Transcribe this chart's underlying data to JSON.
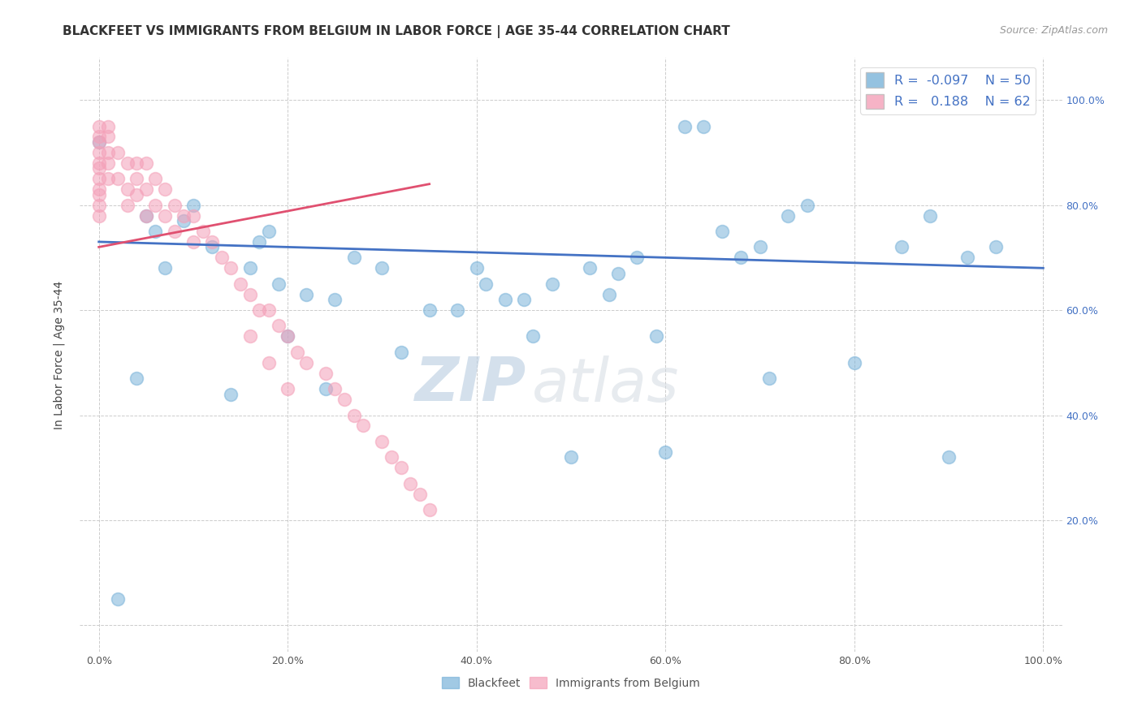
{
  "title": "BLACKFEET VS IMMIGRANTS FROM BELGIUM IN LABOR FORCE | AGE 35-44 CORRELATION CHART",
  "source": "Source: ZipAtlas.com",
  "ylabel": "In Labor Force | Age 35-44",
  "xlim": [
    -0.02,
    1.02
  ],
  "ylim": [
    -0.05,
    1.08
  ],
  "xticks": [
    0.0,
    0.2,
    0.4,
    0.6,
    0.8,
    1.0
  ],
  "yticks": [
    0.0,
    0.2,
    0.4,
    0.6,
    0.8,
    1.0
  ],
  "xticklabels": [
    "0.0%",
    "20.0%",
    "40.0%",
    "60.0%",
    "80.0%",
    "100.0%"
  ],
  "right_yticklabels": [
    "100.0%",
    "80.0%",
    "60.0%",
    "40.0%",
    "20.0%"
  ],
  "watermark_top": "ZIP",
  "watermark_bot": "atlas",
  "blue_scatter_x": [
    0.0,
    0.02,
    0.04,
    0.05,
    0.06,
    0.07,
    0.09,
    0.1,
    0.12,
    0.14,
    0.16,
    0.17,
    0.18,
    0.19,
    0.2,
    0.22,
    0.24,
    0.25,
    0.27,
    0.3,
    0.32,
    0.35,
    0.38,
    0.4,
    0.41,
    0.43,
    0.45,
    0.46,
    0.48,
    0.5,
    0.52,
    0.54,
    0.55,
    0.57,
    0.59,
    0.6,
    0.62,
    0.64,
    0.66,
    0.68,
    0.7,
    0.71,
    0.73,
    0.75,
    0.8,
    0.85,
    0.88,
    0.9,
    0.92,
    0.95
  ],
  "blue_scatter_y": [
    0.92,
    0.05,
    0.47,
    0.78,
    0.75,
    0.68,
    0.77,
    0.8,
    0.72,
    0.44,
    0.68,
    0.73,
    0.75,
    0.65,
    0.55,
    0.63,
    0.45,
    0.62,
    0.7,
    0.68,
    0.52,
    0.6,
    0.6,
    0.68,
    0.65,
    0.62,
    0.62,
    0.55,
    0.65,
    0.32,
    0.68,
    0.63,
    0.67,
    0.7,
    0.55,
    0.33,
    0.95,
    0.95,
    0.75,
    0.7,
    0.72,
    0.47,
    0.78,
    0.8,
    0.5,
    0.72,
    0.78,
    0.32,
    0.7,
    0.72
  ],
  "pink_scatter_x": [
    0.0,
    0.0,
    0.0,
    0.0,
    0.0,
    0.0,
    0.0,
    0.0,
    0.0,
    0.0,
    0.0,
    0.01,
    0.01,
    0.01,
    0.01,
    0.01,
    0.02,
    0.02,
    0.03,
    0.03,
    0.03,
    0.04,
    0.04,
    0.04,
    0.05,
    0.05,
    0.05,
    0.06,
    0.06,
    0.07,
    0.07,
    0.08,
    0.08,
    0.09,
    0.1,
    0.1,
    0.11,
    0.12,
    0.13,
    0.14,
    0.15,
    0.16,
    0.17,
    0.18,
    0.19,
    0.2,
    0.21,
    0.22,
    0.24,
    0.25,
    0.26,
    0.27,
    0.28,
    0.3,
    0.31,
    0.32,
    0.33,
    0.34,
    0.35,
    0.16,
    0.18,
    0.2
  ],
  "pink_scatter_y": [
    0.95,
    0.93,
    0.92,
    0.9,
    0.88,
    0.87,
    0.85,
    0.83,
    0.82,
    0.8,
    0.78,
    0.95,
    0.93,
    0.9,
    0.88,
    0.85,
    0.9,
    0.85,
    0.88,
    0.83,
    0.8,
    0.88,
    0.85,
    0.82,
    0.88,
    0.83,
    0.78,
    0.85,
    0.8,
    0.83,
    0.78,
    0.8,
    0.75,
    0.78,
    0.78,
    0.73,
    0.75,
    0.73,
    0.7,
    0.68,
    0.65,
    0.63,
    0.6,
    0.6,
    0.57,
    0.55,
    0.52,
    0.5,
    0.48,
    0.45,
    0.43,
    0.4,
    0.38,
    0.35,
    0.32,
    0.3,
    0.27,
    0.25,
    0.22,
    0.55,
    0.5,
    0.45
  ],
  "blue_line_x": [
    0.0,
    1.0
  ],
  "blue_line_y": [
    0.73,
    0.68
  ],
  "pink_line_x": [
    0.0,
    0.35
  ],
  "pink_line_y": [
    0.72,
    0.84
  ],
  "blue_color": "#7ab3d9",
  "pink_color": "#f4a0b8",
  "blue_line_color": "#4472c4",
  "pink_line_color": "#e05070",
  "grid_color": "#cccccc",
  "background_color": "#ffffff",
  "title_fontsize": 11,
  "source_fontsize": 9,
  "axis_fontsize": 10,
  "tick_fontsize": 9,
  "watermark_color": "#c8d8e8",
  "watermark_fontsize_zip": 54,
  "watermark_fontsize_atlas": 54,
  "legend_R_color": "#4472c4",
  "right_tick_color": "#4472c4"
}
